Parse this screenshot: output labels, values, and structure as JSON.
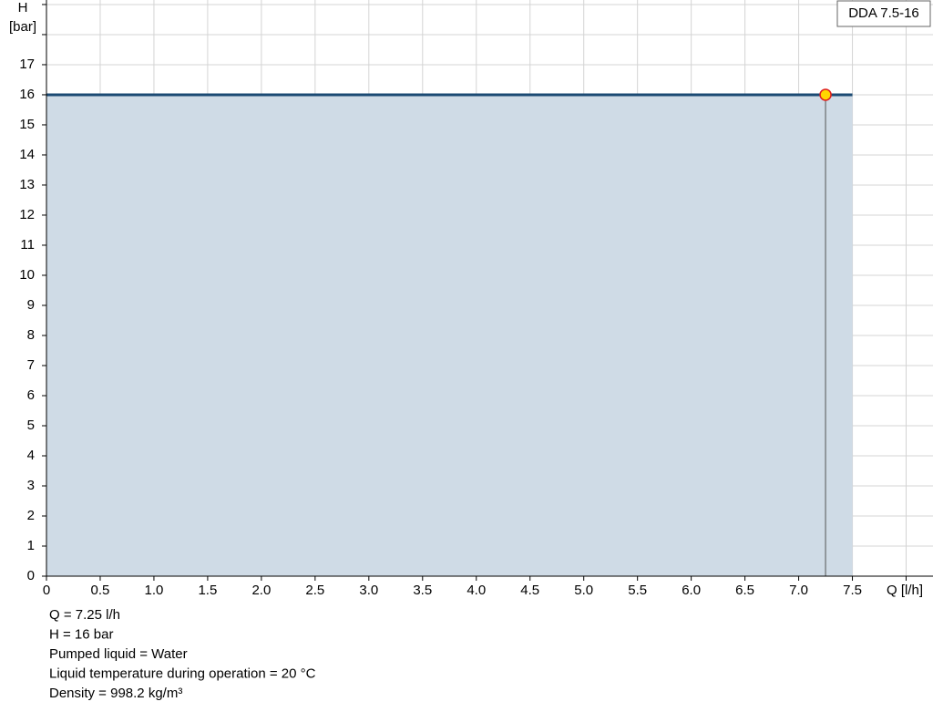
{
  "chart_data": {
    "type": "line",
    "y_label_top": "H",
    "y_label_unit": "[bar]",
    "x_label": "Q [l/h]",
    "legend_title": "DDA 7.5-16",
    "x": [
      0,
      7.5
    ],
    "series": [
      {
        "name": "DDA 7.5-16",
        "color": "#1b4a73",
        "area_color": "#cfdbe6",
        "values": [
          16,
          16
        ]
      }
    ],
    "operating_point": {
      "x": 7.25,
      "y": 16,
      "fill": "#ffd700",
      "stroke": "#e02020"
    },
    "xlim": [
      0,
      8.25
    ],
    "ylim": [
      0,
      19.15
    ],
    "xticks": [
      0,
      0.5,
      {
        "value": 1,
        "label": "1.0"
      },
      1.5,
      {
        "value": 2,
        "label": "2.0"
      },
      2.5,
      {
        "value": 3,
        "label": "3.0"
      },
      3.5,
      {
        "value": 4,
        "label": "4.0"
      },
      4.5,
      {
        "value": 5,
        "label": "5.0"
      },
      5.5,
      {
        "value": 6,
        "label": "6.0"
      },
      6.5,
      {
        "value": 7,
        "label": "7.0"
      },
      7.5
    ],
    "yticks": [
      0,
      1,
      2,
      3,
      4,
      5,
      6,
      7,
      8,
      9,
      10,
      11,
      12,
      13,
      14,
      15,
      16,
      17
    ],
    "xgrid": [
      8
    ],
    "ygrid": [
      18,
      19
    ],
    "grid": true,
    "info": [
      "Q = 7.25 l/h",
      "H = 16 bar",
      "Pumped liquid = Water",
      "Liquid temperature during operation = 20 °C",
      "Density = 998.2 kg/m³"
    ]
  }
}
